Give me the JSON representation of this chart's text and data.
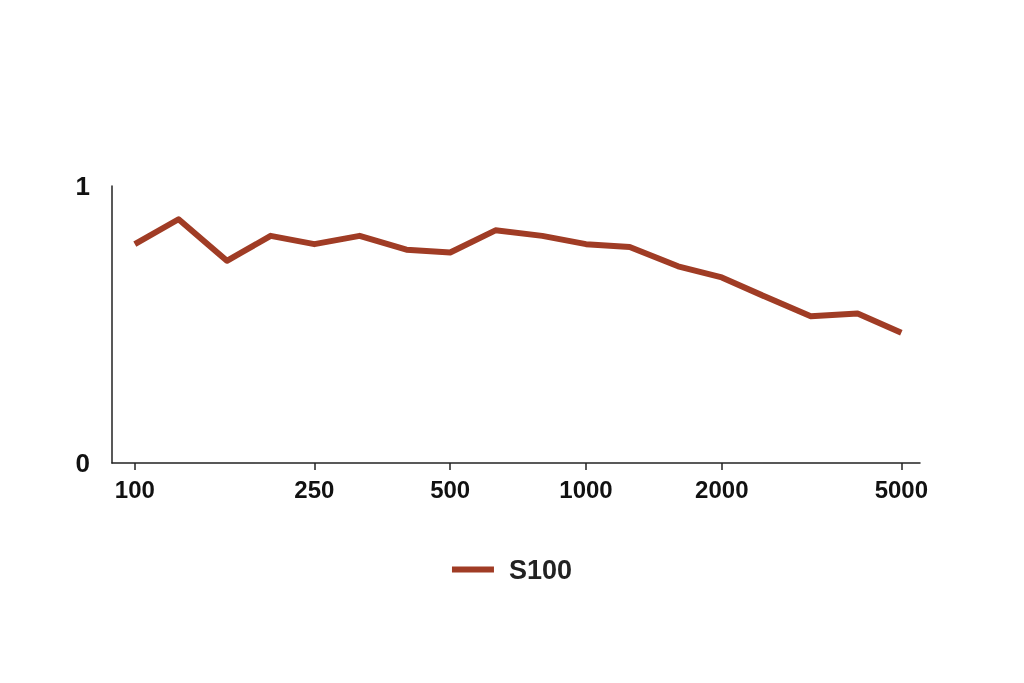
{
  "chart_data": {
    "type": "line",
    "x": [
      100,
      125,
      160,
      200,
      250,
      315,
      400,
      500,
      630,
      800,
      1000,
      1250,
      1600,
      2000,
      2500,
      3150,
      4000,
      5000
    ],
    "series": [
      {
        "name": "S100",
        "color": "#a03c25",
        "values": [
          0.79,
          0.88,
          0.73,
          0.82,
          0.79,
          0.82,
          0.77,
          0.76,
          0.84,
          0.82,
          0.79,
          0.78,
          0.71,
          0.67,
          0.6,
          0.53,
          0.54,
          0.47
        ]
      }
    ],
    "log": "x",
    "xlim": [
      89,
      5500
    ],
    "xticks": [
      100,
      250,
      500,
      1000,
      2000,
      5000
    ],
    "ylim": [
      0,
      1
    ],
    "yticks": [
      0,
      1
    ],
    "grid": false,
    "legend": "bottom",
    "marker": "none",
    "line_style": "solid"
  }
}
